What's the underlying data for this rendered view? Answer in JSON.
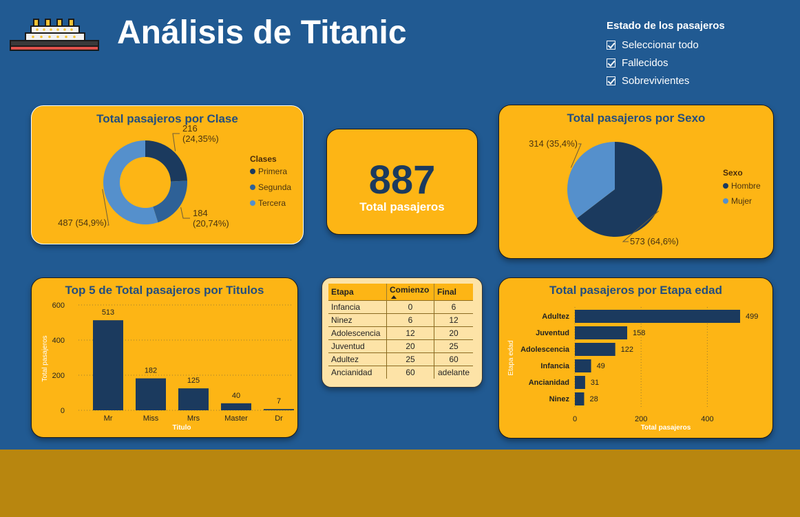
{
  "header": {
    "title": "Análisis de Titanic",
    "logo_icon": "ship-icon"
  },
  "filter": {
    "title": "Estado de los pasajeros",
    "options": [
      {
        "label": "Seleccionar todo",
        "checked": true
      },
      {
        "label": "Fallecidos",
        "checked": true
      },
      {
        "label": "Sobrevivientes",
        "checked": true
      }
    ]
  },
  "kpi": {
    "value": "887",
    "label": "Total pasajeros"
  },
  "colors": {
    "background": "#215A92",
    "card": "#FDB515",
    "dark_blue": "#1B3A5E",
    "mid_blue": "#2E6197",
    "light_blue": "#5590CC",
    "floor": "#B8860F"
  },
  "legends": {
    "clase": {
      "title": "Clases",
      "items": [
        "Primera",
        "Segunda",
        "Tercera"
      ]
    },
    "sexo": {
      "title": "Sexo",
      "items": [
        "Hombre",
        "Mujer"
      ]
    }
  },
  "age_table": {
    "headers": [
      "Etapa",
      "Comienzo",
      "Final"
    ],
    "rows": [
      {
        "etapa": "Infancia",
        "comienzo": "0",
        "final": "6"
      },
      {
        "etapa": "Ninez",
        "comienzo": "6",
        "final": "12"
      },
      {
        "etapa": "Adolescencia",
        "comienzo": "12",
        "final": "20"
      },
      {
        "etapa": "Juventud",
        "comienzo": "20",
        "final": "25"
      },
      {
        "etapa": "Adultez",
        "comienzo": "25",
        "final": "60"
      },
      {
        "etapa": "Ancianidad",
        "comienzo": "60",
        "final": "adelante"
      }
    ]
  },
  "chart_data": [
    {
      "type": "pie",
      "variant": "donut",
      "title": "Total pasajeros por Clase",
      "categories": [
        "Primera",
        "Segunda",
        "Tercera"
      ],
      "values": [
        216,
        184,
        487
      ],
      "labels": [
        "216\n(24,35%)",
        "184\n(20,74%)",
        "487 (54,9%)"
      ],
      "colors": [
        "#1B3A5E",
        "#2E6197",
        "#5590CC"
      ],
      "legend": "right"
    },
    {
      "type": "pie",
      "title": "Total pasajeros por Sexo",
      "categories": [
        "Hombre",
        "Mujer"
      ],
      "values": [
        573,
        314
      ],
      "labels": [
        "573 (64,6%)",
        "314 (35,4%)"
      ],
      "colors": [
        "#1B3A5E",
        "#5590CC"
      ],
      "legend": "right"
    },
    {
      "type": "bar",
      "title": "Top 5 de Total pasajeros por Titulos",
      "categories": [
        "Mr",
        "Miss",
        "Mrs",
        "Master",
        "Dr"
      ],
      "values": [
        513,
        182,
        125,
        40,
        7
      ],
      "xlabel": "Titulo",
      "ylabel": "Total pasajeros",
      "ylim": [
        0,
        600
      ],
      "yticks": [
        0,
        200,
        400,
        600
      ],
      "grid": true
    },
    {
      "type": "bar",
      "orientation": "horizontal",
      "title": "Total pasajeros por Etapa edad",
      "categories": [
        "Adultez",
        "Juventud",
        "Adolescencia",
        "Infancia",
        "Ancianidad",
        "Ninez"
      ],
      "values": [
        499,
        158,
        122,
        49,
        31,
        28
      ],
      "xlabel": "Total pasajeros",
      "ylabel": "Etapa edad",
      "xticks": [
        0,
        200,
        400
      ],
      "grid": true
    }
  ]
}
